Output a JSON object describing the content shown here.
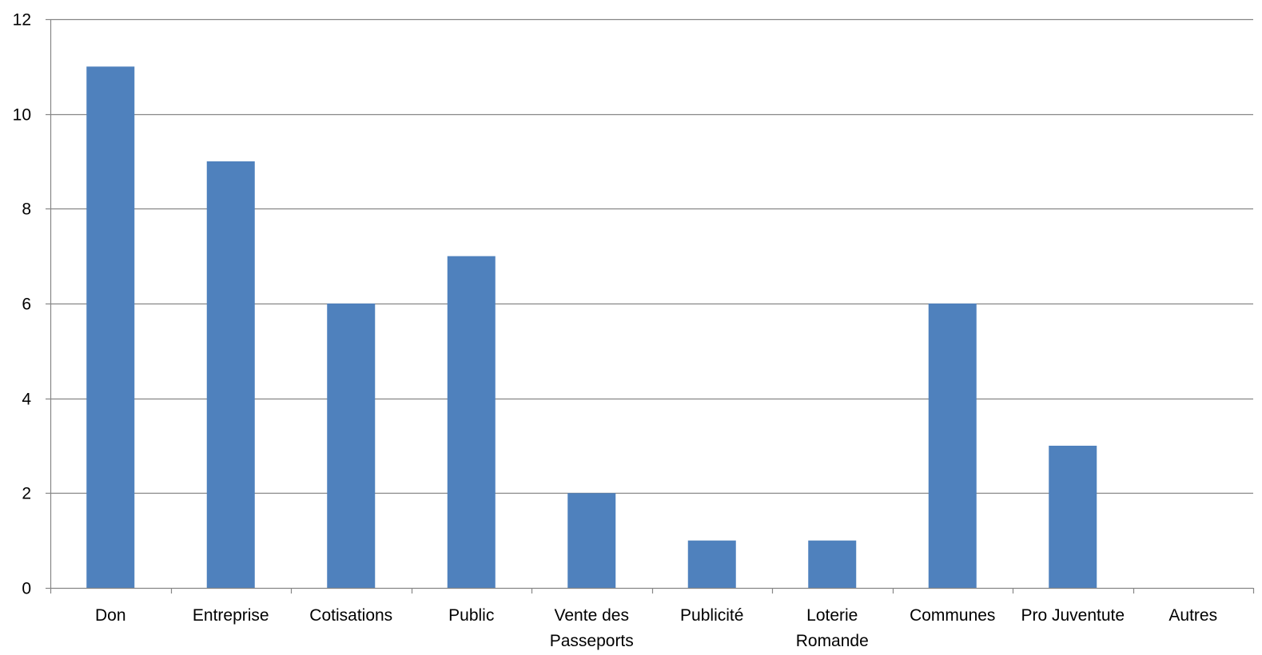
{
  "chart_data": {
    "type": "bar",
    "title": "",
    "xlabel": "",
    "ylabel": "",
    "categories": [
      [
        "Don"
      ],
      [
        "Entreprise"
      ],
      [
        "Cotisations"
      ],
      [
        "Public"
      ],
      [
        "Vente des",
        "Passeports"
      ],
      [
        "Publicité"
      ],
      [
        "Loterie",
        "Romande"
      ],
      [
        "Communes"
      ],
      [
        "Pro Juventute"
      ],
      [
        "Autres"
      ]
    ],
    "values": [
      11,
      9,
      6,
      7,
      2,
      1,
      1,
      6,
      3,
      0
    ],
    "ylim": [
      0,
      12
    ],
    "yticks": [
      "0",
      "2",
      "4",
      "6",
      "8",
      "10",
      "12"
    ],
    "grid": true,
    "legend": "none",
    "colors": {
      "bar": "#4F81BD",
      "grid": "#868686",
      "axis": "#868686"
    }
  }
}
